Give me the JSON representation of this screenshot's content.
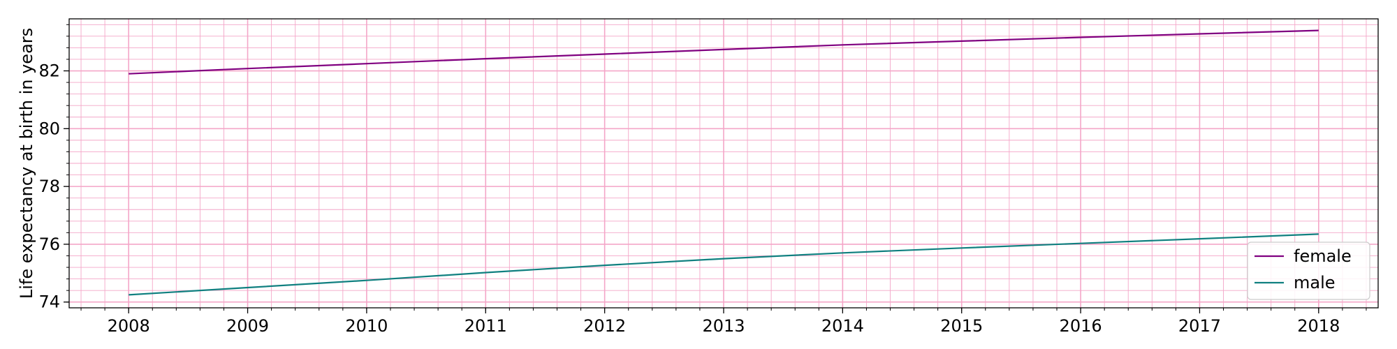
{
  "chart_data": {
    "type": "line",
    "title": "",
    "xlabel": "",
    "ylabel": "Life expectancy at birth in years",
    "x": [
      2008,
      2009,
      2010,
      2011,
      2012,
      2013,
      2014,
      2015,
      2016,
      2017,
      2018
    ],
    "xlim": [
      2007.5,
      2018.5
    ],
    "ylim": [
      73.8,
      83.8
    ],
    "xticks": [
      2008,
      2009,
      2010,
      2011,
      2012,
      2013,
      2014,
      2015,
      2016,
      2017,
      2018
    ],
    "yticks": [
      74,
      76,
      78,
      80,
      82
    ],
    "grid": true,
    "minor_grid": true,
    "grid_color": "#f4a6c8",
    "legend_position": "bottom-right",
    "series": [
      {
        "name": "female",
        "color": "#800080",
        "values": [
          81.9,
          82.08,
          82.25,
          82.42,
          82.58,
          82.74,
          82.9,
          83.03,
          83.16,
          83.28,
          83.4
        ]
      },
      {
        "name": "male",
        "color": "#108080",
        "values": [
          74.25,
          74.5,
          74.75,
          75.02,
          75.27,
          75.5,
          75.7,
          75.87,
          76.03,
          76.19,
          76.35
        ]
      }
    ]
  }
}
